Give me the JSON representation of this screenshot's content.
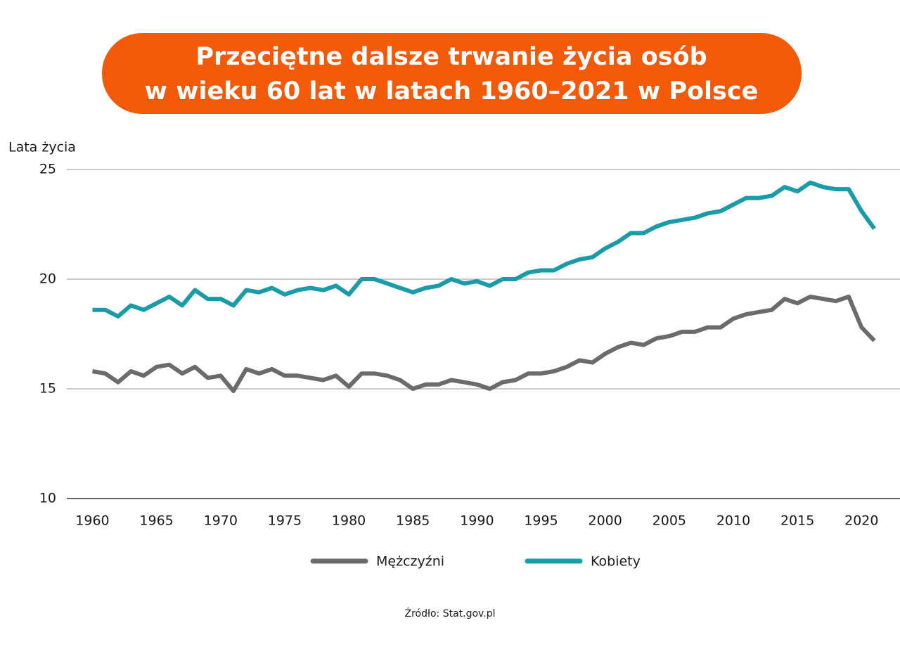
{
  "chart_data": {
    "type": "line",
    "title": [
      "Przeciętne dalsze trwanie życia osób",
      "w wieku 60 lat w latach 1960–2021 w Polsce"
    ],
    "y_label": "Lata życia",
    "source": "Źródło: Stat.gov.pl",
    "x": [
      1960,
      1961,
      1962,
      1963,
      1964,
      1965,
      1966,
      1967,
      1968,
      1969,
      1970,
      1971,
      1972,
      1973,
      1974,
      1975,
      1976,
      1977,
      1978,
      1979,
      1980,
      1981,
      1982,
      1983,
      1984,
      1985,
      1986,
      1987,
      1988,
      1989,
      1990,
      1991,
      1992,
      1993,
      1994,
      1995,
      1996,
      1997,
      1998,
      1999,
      2000,
      2001,
      2002,
      2003,
      2004,
      2005,
      2006,
      2007,
      2008,
      2009,
      2010,
      2011,
      2012,
      2013,
      2014,
      2015,
      2016,
      2017,
      2018,
      2019,
      2020,
      2021
    ],
    "series": [
      {
        "name": "Mężczyźni",
        "color": "#6b6b6b",
        "values": [
          15.8,
          15.7,
          15.3,
          15.8,
          15.6,
          16.0,
          16.1,
          15.7,
          16.0,
          15.5,
          15.6,
          14.9,
          15.9,
          15.7,
          15.9,
          15.6,
          15.6,
          15.5,
          15.4,
          15.6,
          15.1,
          15.7,
          15.7,
          15.6,
          15.4,
          15.0,
          15.2,
          15.2,
          15.4,
          15.3,
          15.2,
          15.0,
          15.3,
          15.4,
          15.7,
          15.7,
          15.8,
          16.0,
          16.3,
          16.2,
          16.6,
          16.9,
          17.1,
          17.0,
          17.3,
          17.4,
          17.6,
          17.6,
          17.8,
          17.8,
          18.2,
          18.4,
          18.5,
          18.6,
          19.1,
          18.9,
          19.2,
          19.1,
          19.0,
          19.2,
          17.8,
          17.2
        ]
      },
      {
        "name": "Kobiety",
        "color": "#1b9ba8",
        "values": [
          18.6,
          18.6,
          18.3,
          18.8,
          18.6,
          18.9,
          19.2,
          18.8,
          19.5,
          19.1,
          19.1,
          18.8,
          19.5,
          19.4,
          19.6,
          19.3,
          19.5,
          19.6,
          19.5,
          19.7,
          19.3,
          20.0,
          20.0,
          19.8,
          19.6,
          19.4,
          19.6,
          19.7,
          20.0,
          19.8,
          19.9,
          19.7,
          20.0,
          20.0,
          20.3,
          20.4,
          20.4,
          20.7,
          20.9,
          21.0,
          21.4,
          21.7,
          22.1,
          22.1,
          22.4,
          22.6,
          22.7,
          22.8,
          23.0,
          23.1,
          23.4,
          23.7,
          23.7,
          23.8,
          24.2,
          24.0,
          24.4,
          24.2,
          24.1,
          24.1,
          23.1,
          22.3
        ]
      }
    ],
    "xlim": [
      1958,
      2023
    ],
    "xticks": [
      1960,
      1965,
      1970,
      1975,
      1980,
      1985,
      1990,
      1995,
      2000,
      2005,
      2010,
      2015,
      2020
    ],
    "ylim": [
      10,
      25
    ],
    "yticks": [
      10,
      15,
      20,
      25
    ],
    "grid": true,
    "legend": "bottom",
    "title_color": "#f25a0a"
  }
}
